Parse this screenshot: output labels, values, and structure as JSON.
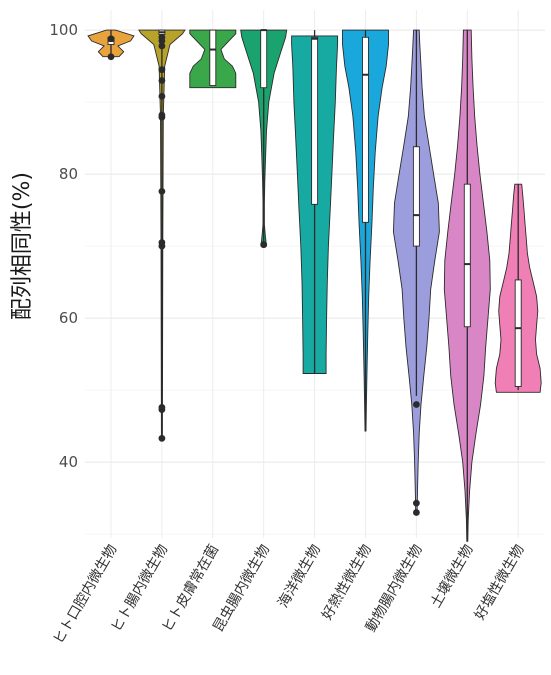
{
  "chart_data": {
    "type": "violin",
    "ylabel": "配列相同性(%)",
    "ylim": [
      29,
      100
    ],
    "yticks": [
      40,
      60,
      80,
      100
    ],
    "grid": true,
    "legend": "none",
    "categories": [
      "ヒト口腔内微生物",
      "ヒト腸内微生物",
      "ヒト皮膚常在菌",
      "昆虫腸内微生物",
      "海洋微生物",
      "好熱性微生物",
      "動物腸内微生物",
      "土壌微生物",
      "好塩性微生物"
    ],
    "series": [
      {
        "color": "#e8a33d",
        "box": {
          "q1": 98.0,
          "median": 98.5,
          "q3": 99.0
        },
        "whisker": [
          96.5,
          100
        ],
        "outliers": [
          96.3,
          98.8
        ],
        "violin": [
          [
            96.3,
            0.35
          ],
          [
            97.0,
            0.55
          ],
          [
            97.8,
            0.3
          ],
          [
            98.5,
            0.85
          ],
          [
            99.2,
            1.0
          ],
          [
            99.7,
            0.5
          ],
          [
            100,
            0.2
          ]
        ]
      },
      {
        "color": "#b8a32a",
        "box": {
          "q1": 99.4,
          "median": 99.7,
          "q3": 100
        },
        "whisker": [
          43.3,
          100
        ],
        "outliers": [
          43.3,
          47.3,
          47.6,
          70.0,
          70.5,
          77.6,
          87.9,
          88.2,
          90.8,
          93.0,
          94.5,
          97.8,
          98.5,
          99.0
        ],
        "violin": [
          [
            43.3,
            0.02
          ],
          [
            70,
            0.04
          ],
          [
            88,
            0.06
          ],
          [
            95,
            0.12
          ],
          [
            98,
            0.35
          ],
          [
            99.5,
            0.9
          ],
          [
            100,
            1.0
          ]
        ]
      },
      {
        "color": "#3aa84a",
        "box": {
          "q1": 92.3,
          "median": 97.3,
          "q3": 100
        },
        "whisker": [
          92.3,
          100
        ],
        "outliers": [],
        "violin": [
          [
            92.0,
            1.0
          ],
          [
            94.0,
            1.0
          ],
          [
            95.0,
            0.85
          ],
          [
            96.0,
            0.5
          ],
          [
            97.3,
            0.35
          ],
          [
            98.5,
            0.7
          ],
          [
            99.5,
            1.0
          ],
          [
            100,
            1.0
          ]
        ]
      },
      {
        "color": "#1aa36e",
        "box": {
          "q1": 92.0,
          "median": 100,
          "q3": 100
        },
        "whisker": [
          70.2,
          100
        ],
        "outliers": [
          70.2
        ],
        "violin": [
          [
            70.0,
            0.12
          ],
          [
            71.5,
            0.07
          ],
          [
            73,
            0.03
          ],
          [
            76,
            0.03
          ],
          [
            79,
            0.05
          ],
          [
            82,
            0.08
          ],
          [
            86,
            0.12
          ],
          [
            90,
            0.22
          ],
          [
            94,
            0.45
          ],
          [
            97,
            0.75
          ],
          [
            99,
            0.95
          ],
          [
            100,
            1.0
          ]
        ]
      },
      {
        "color": "#17aaa3",
        "box": {
          "q1": 75.8,
          "median": 98.8,
          "q3": 99.0
        },
        "whisker": [
          52.3,
          100
        ],
        "outliers": [],
        "violin": [
          [
            52.3,
            0.5
          ],
          [
            55,
            0.5
          ],
          [
            60,
            0.52
          ],
          [
            65,
            0.55
          ],
          [
            70,
            0.6
          ],
          [
            75,
            0.68
          ],
          [
            80,
            0.75
          ],
          [
            85,
            0.82
          ],
          [
            90,
            0.9
          ],
          [
            95,
            0.95
          ],
          [
            98,
            1.0
          ],
          [
            99.2,
            1.0
          ]
        ]
      },
      {
        "color": "#1aa8dc",
        "box": {
          "q1": 73.3,
          "median": 93.8,
          "q3": 99.0
        },
        "whisker": [
          44.3,
          100
        ],
        "outliers": [],
        "violin": [
          [
            44.3,
            0.02
          ],
          [
            48,
            0.04
          ],
          [
            52,
            0.06
          ],
          [
            58,
            0.1
          ],
          [
            63,
            0.14
          ],
          [
            68,
            0.2
          ],
          [
            73,
            0.28
          ],
          [
            78,
            0.34
          ],
          [
            83,
            0.42
          ],
          [
            88,
            0.55
          ],
          [
            92,
            0.72
          ],
          [
            95,
            0.9
          ],
          [
            98,
            1.0
          ],
          [
            100,
            1.0
          ]
        ]
      },
      {
        "color": "#9c9ddd",
        "box": {
          "q1": 70.0,
          "median": 74.3,
          "q3": 83.8
        },
        "whisker": [
          49.2,
          100
        ],
        "outliers": [
          48.0,
          34.3,
          33.0
        ],
        "violin": [
          [
            33.0,
            0.03
          ],
          [
            36,
            0.05
          ],
          [
            40,
            0.08
          ],
          [
            44,
            0.12
          ],
          [
            48,
            0.2
          ],
          [
            52,
            0.32
          ],
          [
            56,
            0.45
          ],
          [
            60,
            0.55
          ],
          [
            64,
            0.62
          ],
          [
            68,
            0.8
          ],
          [
            72,
            1.0
          ],
          [
            76,
            0.95
          ],
          [
            80,
            0.75
          ],
          [
            84,
            0.55
          ],
          [
            88,
            0.35
          ],
          [
            92,
            0.25
          ],
          [
            95,
            0.2
          ],
          [
            98,
            0.15
          ],
          [
            100,
            0.12
          ]
        ]
      },
      {
        "color": "#d886c6",
        "box": {
          "q1": 58.8,
          "median": 67.5,
          "q3": 78.6
        },
        "whisker": [
          29.0,
          100
        ],
        "outliers": [],
        "violin": [
          [
            29.0,
            0.02
          ],
          [
            32,
            0.04
          ],
          [
            36,
            0.1
          ],
          [
            40,
            0.2
          ],
          [
            44,
            0.38
          ],
          [
            48,
            0.58
          ],
          [
            52,
            0.72
          ],
          [
            56,
            0.8
          ],
          [
            60,
            0.9
          ],
          [
            64,
            1.0
          ],
          [
            68,
            0.98
          ],
          [
            72,
            0.85
          ],
          [
            76,
            0.7
          ],
          [
            80,
            0.55
          ],
          [
            84,
            0.42
          ],
          [
            88,
            0.32
          ],
          [
            92,
            0.25
          ],
          [
            96,
            0.2
          ],
          [
            100,
            0.17
          ]
        ]
      },
      {
        "color": "#f07fb5",
        "box": {
          "q1": 50.5,
          "median": 58.6,
          "q3": 65.3
        },
        "whisker": [
          50.0,
          78.6
        ],
        "outliers": [],
        "violin": [
          [
            49.7,
            0.95
          ],
          [
            51,
            1.0
          ],
          [
            53,
            0.95
          ],
          [
            55,
            0.8
          ],
          [
            57,
            0.75
          ],
          [
            59,
            0.8
          ],
          [
            61,
            0.85
          ],
          [
            63,
            0.8
          ],
          [
            65,
            0.65
          ],
          [
            67,
            0.5
          ],
          [
            69,
            0.4
          ],
          [
            71,
            0.35
          ],
          [
            73,
            0.3
          ],
          [
            75,
            0.25
          ],
          [
            77,
            0.2
          ],
          [
            78.6,
            0.15
          ]
        ]
      }
    ]
  }
}
